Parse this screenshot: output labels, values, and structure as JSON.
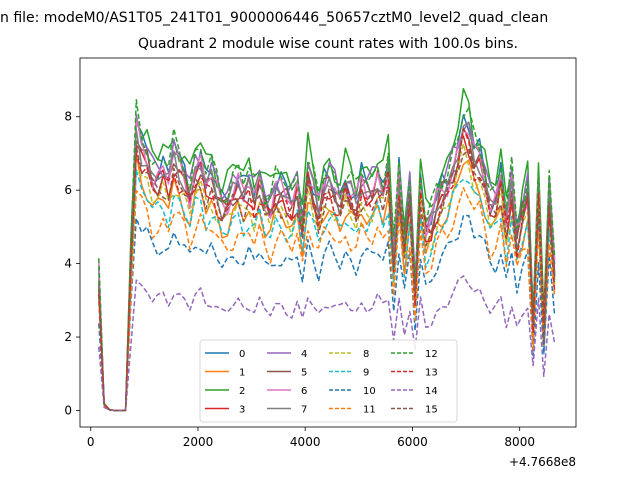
{
  "figure": {
    "suptitle": "n file: modeM0/AS1T05_241T01_9000006446_50657cztM0_level2_quad_clean",
    "title": "Quadrant 2 module wise count rates with 100.0s bins.",
    "x_offset_label": "+4.7668e8"
  },
  "chart_data": {
    "type": "line",
    "title": "Quadrant 2 module wise count rates with 100.0s bins.",
    "xlabel": "",
    "ylabel": "",
    "xlim": [
      -200,
      9050
    ],
    "ylim": [
      -0.45,
      9.6
    ],
    "x_offset": "+4.7668e8",
    "xticks": [
      0,
      2000,
      4000,
      6000,
      8000
    ],
    "yticks": [
      0,
      2,
      4,
      6,
      8
    ],
    "grid": false,
    "legend": {
      "placement": "lower center",
      "columns": 4
    },
    "series": [
      {
        "name": "0",
        "color": "#1f77b4",
        "dash": "solid"
      },
      {
        "name": "1",
        "color": "#ff7f0e",
        "dash": "solid"
      },
      {
        "name": "2",
        "color": "#2ca02c",
        "dash": "solid"
      },
      {
        "name": "3",
        "color": "#d62728",
        "dash": "solid"
      },
      {
        "name": "4",
        "color": "#9467bd",
        "dash": "solid"
      },
      {
        "name": "5",
        "color": "#8c564b",
        "dash": "solid"
      },
      {
        "name": "6",
        "color": "#e377c2",
        "dash": "solid"
      },
      {
        "name": "7",
        "color": "#7f7f7f",
        "dash": "solid"
      },
      {
        "name": "8",
        "color": "#bcbd22",
        "dash": "dashed"
      },
      {
        "name": "9",
        "color": "#17becf",
        "dash": "dashed"
      },
      {
        "name": "10",
        "color": "#1f77b4",
        "dash": "dashed"
      },
      {
        "name": "11",
        "color": "#ff7f0e",
        "dash": "dashed"
      },
      {
        "name": "12",
        "color": "#2ca02c",
        "dash": "dashed"
      },
      {
        "name": "13",
        "color": "#d62728",
        "dash": "dashed"
      },
      {
        "name": "14",
        "color": "#9467bd",
        "dash": "dashed"
      },
      {
        "name": "15",
        "color": "#8c564b",
        "dash": "dashed"
      }
    ],
    "x": [
      150,
      250,
      350,
      450,
      550,
      650,
      750,
      850,
      950,
      1050,
      1150,
      1250,
      1350,
      1450,
      1550,
      1650,
      1750,
      1850,
      1950,
      2050,
      2150,
      2250,
      2350,
      2450,
      2550,
      2650,
      2750,
      2850,
      2950,
      3050,
      3150,
      3250,
      3350,
      3450,
      3550,
      3650,
      3750,
      3850,
      3950,
      4050,
      4150,
      4250,
      4350,
      4450,
      4550,
      4650,
      4750,
      4850,
      4950,
      5050,
      5150,
      5250,
      5350,
      5450,
      5550,
      5650,
      5750,
      5850,
      5950,
      6050,
      6150,
      6250,
      6350,
      6450,
      6550,
      6650,
      6750,
      6850,
      6950,
      7050,
      7150,
      7250,
      7350,
      7450,
      7550,
      7650,
      7750,
      7850,
      7950,
      8050,
      8150,
      8250,
      8350,
      8450,
      8550,
      8650
    ],
    "base_profile": [
      4.0,
      0.2,
      0.02,
      0.0,
      0.0,
      0.0,
      4.5,
      8.4,
      7.8,
      7.6,
      7.0,
      7.0,
      7.2,
      6.9,
      7.6,
      7.3,
      7.0,
      6.5,
      7.2,
      7.4,
      6.8,
      7.0,
      6.6,
      6.2,
      6.3,
      6.6,
      6.8,
      6.5,
      6.8,
      6.4,
      6.9,
      6.3,
      6.1,
      6.6,
      6.6,
      6.4,
      6.2,
      6.7,
      5.6,
      7.2,
      6.6,
      6.0,
      6.7,
      6.9,
      6.6,
      6.3,
      6.8,
      6.5,
      6.2,
      6.8,
      6.6,
      6.6,
      7.0,
      6.6,
      7.2,
      4.5,
      7.0,
      5.0,
      6.5,
      3.6,
      6.8,
      5.4,
      5.6,
      6.2,
      6.6,
      6.8,
      7.3,
      7.8,
      8.5,
      8.3,
      7.6,
      7.6,
      7.0,
      6.2,
      6.3,
      7.0,
      5.6,
      6.8,
      5.2,
      6.0,
      6.6,
      2.6,
      6.8,
      2.4,
      6.5,
      4.2
    ],
    "module_scale": [
      0.93,
      0.8,
      0.99,
      0.88,
      0.94,
      0.89,
      0.91,
      0.9,
      0.82,
      0.77,
      0.63,
      0.71,
      0.96,
      0.86,
      0.43,
      0.85
    ]
  }
}
